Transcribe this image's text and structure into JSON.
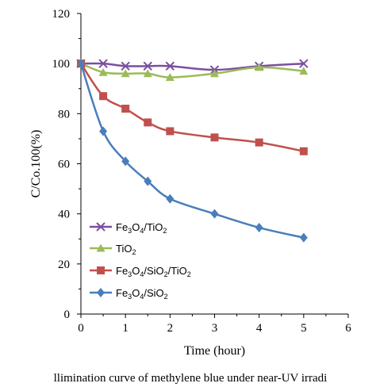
{
  "chart_data": {
    "type": "line",
    "xlabel": "Time (hour)",
    "ylabel": "C/Co.100(%)",
    "xlim": [
      0,
      6
    ],
    "ylim": [
      0,
      120
    ],
    "xticks": [
      0,
      1,
      2,
      3,
      4,
      5,
      6
    ],
    "yticks": [
      0,
      20,
      40,
      60,
      80,
      100,
      120
    ],
    "grid": false,
    "legend_position": "bottom-left",
    "series": [
      {
        "name": "Fe3O4/TiO2",
        "label": {
          "parts": [
            [
              "Fe",
              ""
            ],
            [
              "3",
              "sub"
            ],
            [
              "O",
              ""
            ],
            [
              "4",
              "sub"
            ],
            [
              "/TiO",
              ""
            ],
            [
              "2",
              "sub"
            ]
          ]
        },
        "color": "#7b4f9e",
        "marker": "x",
        "x": [
          0,
          0.5,
          1,
          1.5,
          2,
          3,
          4,
          5
        ],
        "y": [
          100,
          100,
          99,
          99,
          99,
          97.5,
          99,
          100
        ]
      },
      {
        "name": "TiO2",
        "label": {
          "parts": [
            [
              "TiO",
              ""
            ],
            [
              "2",
              "sub"
            ]
          ]
        },
        "color": "#9bbb59",
        "marker": "triangle",
        "x": [
          0,
          0.5,
          1,
          1.5,
          2,
          3,
          4,
          5
        ],
        "y": [
          100,
          96.5,
          96,
          96,
          94.5,
          96,
          98.5,
          97
        ]
      },
      {
        "name": "Fe3O4/SiO2/TiO2",
        "label": {
          "parts": [
            [
              "Fe",
              ""
            ],
            [
              "3",
              "sub"
            ],
            [
              "O",
              ""
            ],
            [
              "4",
              "sub"
            ],
            [
              "/SiO",
              ""
            ],
            [
              "2",
              "sub"
            ],
            [
              "/TiO",
              ""
            ],
            [
              "2",
              "sub"
            ]
          ]
        },
        "color": "#c0504d",
        "marker": "square",
        "x": [
          0,
          0.5,
          1,
          1.5,
          2,
          3,
          4,
          5
        ],
        "y": [
          100,
          87,
          82,
          76.5,
          73,
          70.5,
          68.5,
          65
        ]
      },
      {
        "name": "Fe3O4/SiO2",
        "label": {
          "parts": [
            [
              "Fe",
              ""
            ],
            [
              "3",
              "sub"
            ],
            [
              "O",
              ""
            ],
            [
              "4",
              "sub"
            ],
            [
              "/SiO",
              ""
            ],
            [
              "2",
              "sub"
            ]
          ]
        },
        "color": "#4a7ebb",
        "marker": "diamond",
        "x": [
          0,
          0.5,
          1,
          1.5,
          2,
          3,
          4,
          5
        ],
        "y": [
          100,
          73,
          61,
          53,
          46,
          40,
          34.5,
          30.5
        ]
      }
    ]
  },
  "caption": "llimination curve of methylene blue under near-UV irradi"
}
